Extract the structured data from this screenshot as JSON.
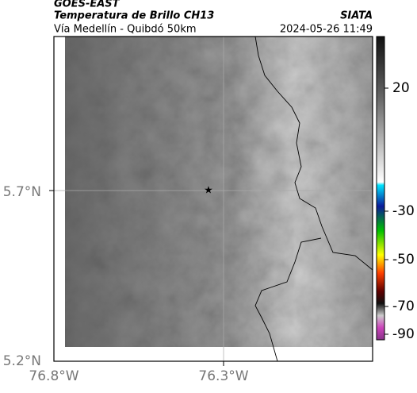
{
  "header": {
    "source": "GOES-EAST",
    "title": "Temperatura de Brillo CH13",
    "subtitle": "Vía Medellín - Quibdó 50km",
    "agency": "SIATA",
    "datetime": "2024-05-26 11:49"
  },
  "map": {
    "lat_labels": [
      "5.7°N",
      "5.2°N"
    ],
    "lon_labels": [
      "76.8°W",
      "76.3°W"
    ]
  },
  "colorbar": {
    "ticks": [
      20,
      -30,
      -50,
      -70,
      -90
    ]
  }
}
